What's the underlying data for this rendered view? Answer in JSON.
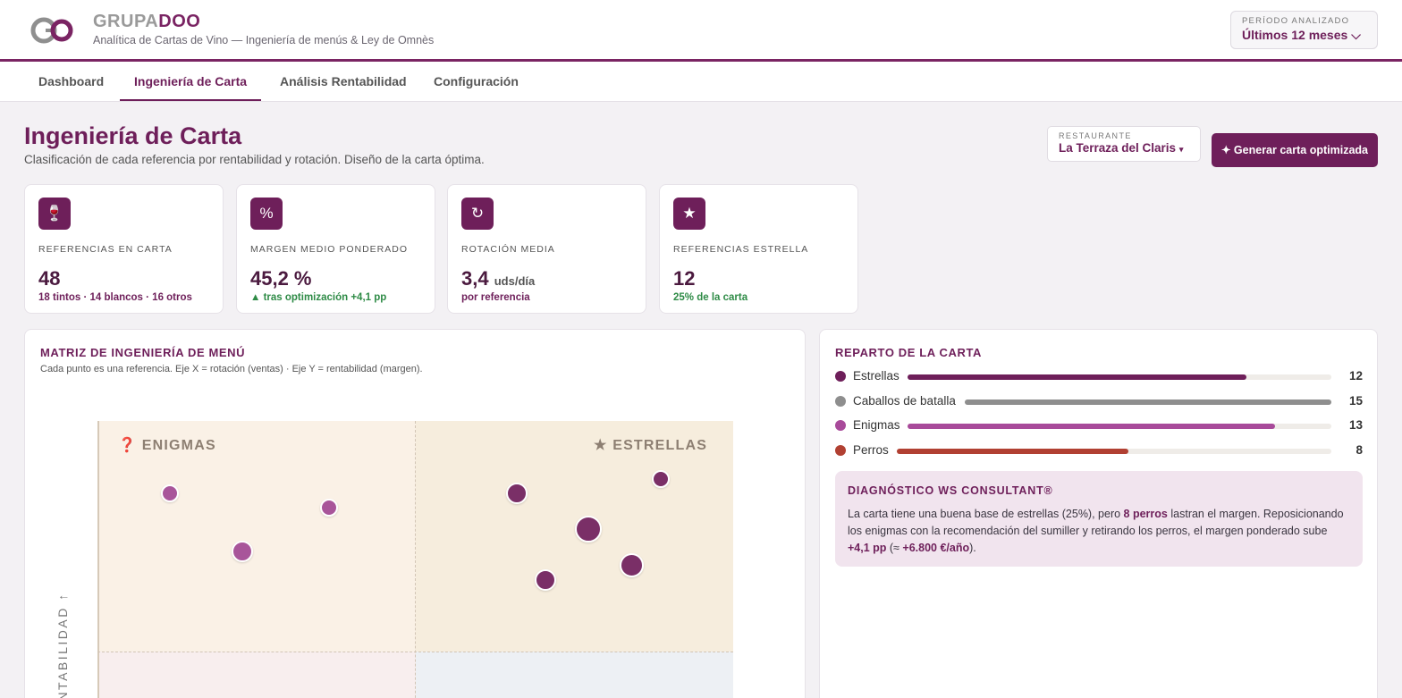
{
  "brand": {
    "part1": "GRUPA",
    "part2": "DOO",
    "tagline": "Analítica de Cartas de Vino — Ingeniería de menús & Ley de Omnès"
  },
  "period": {
    "label": "PERÍODO ANALIZADO",
    "value": "Últimos 12 meses"
  },
  "tabs": [
    {
      "label": "Dashboard"
    },
    {
      "label": "Ingeniería de Carta",
      "active": true
    },
    {
      "label": "Análisis Rentabilidad"
    },
    {
      "label": "Configuración"
    }
  ],
  "page": {
    "title": "Ingeniería de Carta",
    "subtitle": "Clasificación de cada referencia por rentabilidad y rotación. Diseño de la carta óptima.",
    "restaurant_label": "RESTAURANTE",
    "restaurant_value": "La Terraza del Claris",
    "generate_button": "✦ Generar carta optimizada"
  },
  "kpis": [
    {
      "icon": "wine-glass-icon",
      "glyph": "🍷",
      "label": "REFERENCIAS EN CARTA",
      "value": "48",
      "unit": "",
      "sub": "18 tintos · 14 blancos · 16 otros"
    },
    {
      "icon": "percent-icon",
      "glyph": "%",
      "label": "MARGEN MEDIO PONDERADO",
      "value": "45,2 %",
      "unit": "",
      "sub": "▲ tras optimización +4,1 pp"
    },
    {
      "icon": "refresh-icon",
      "glyph": "↻",
      "label": "ROTACIÓN MEDIA",
      "value": "3,4",
      "unit": "uds/día",
      "sub": "por referencia"
    },
    {
      "icon": "star-icon",
      "glyph": "★",
      "label": "REFERENCIAS ESTRELLA",
      "value": "12",
      "unit": "",
      "sub": "25% de la carta"
    }
  ],
  "matrix": {
    "title": "MATRIZ DE INGENIERÍA DE MENÚ",
    "subtitle": "Cada punto es una referencia. Eje X = rotación (ventas) · Eje Y = rentabilidad (margen).",
    "q_enigmas": "❓ ENIGMAS",
    "q_estrellas": "★ ESTRELLAS",
    "ylabel": "RENTABILIDAD ↑"
  },
  "reparto": {
    "title": "REPARTO DE LA CARTA",
    "max": 15,
    "rows": [
      {
        "name": "Estrellas",
        "value": 12,
        "color": "#6e1f5a"
      },
      {
        "name": "Caballos de batalla",
        "value": 15,
        "color": "#8e8e8e"
      },
      {
        "name": "Enigmas",
        "value": 13,
        "color": "#a84a9a"
      },
      {
        "name": "Perros",
        "value": 8,
        "color": "#b14032"
      }
    ]
  },
  "diagnosis": {
    "title": "DIAGNÓSTICO WS CONSULTANT®",
    "t1": "La carta tiene una buena base de estrellas (25%), pero ",
    "b1": "8 perros",
    "t2": " lastran el margen. Reposicionando los enigmas con la recomendación del sumiller y retirando los perros, el margen ponderado sube ",
    "b2": "+4,1 pp",
    "t3": " (≈ ",
    "b3": "+6.800 €/año",
    "t4": ")."
  },
  "colors": {
    "accent": "#6e1f5a",
    "enigma_dot": "#a8559a",
    "star_dot": "#7a2f67"
  }
}
